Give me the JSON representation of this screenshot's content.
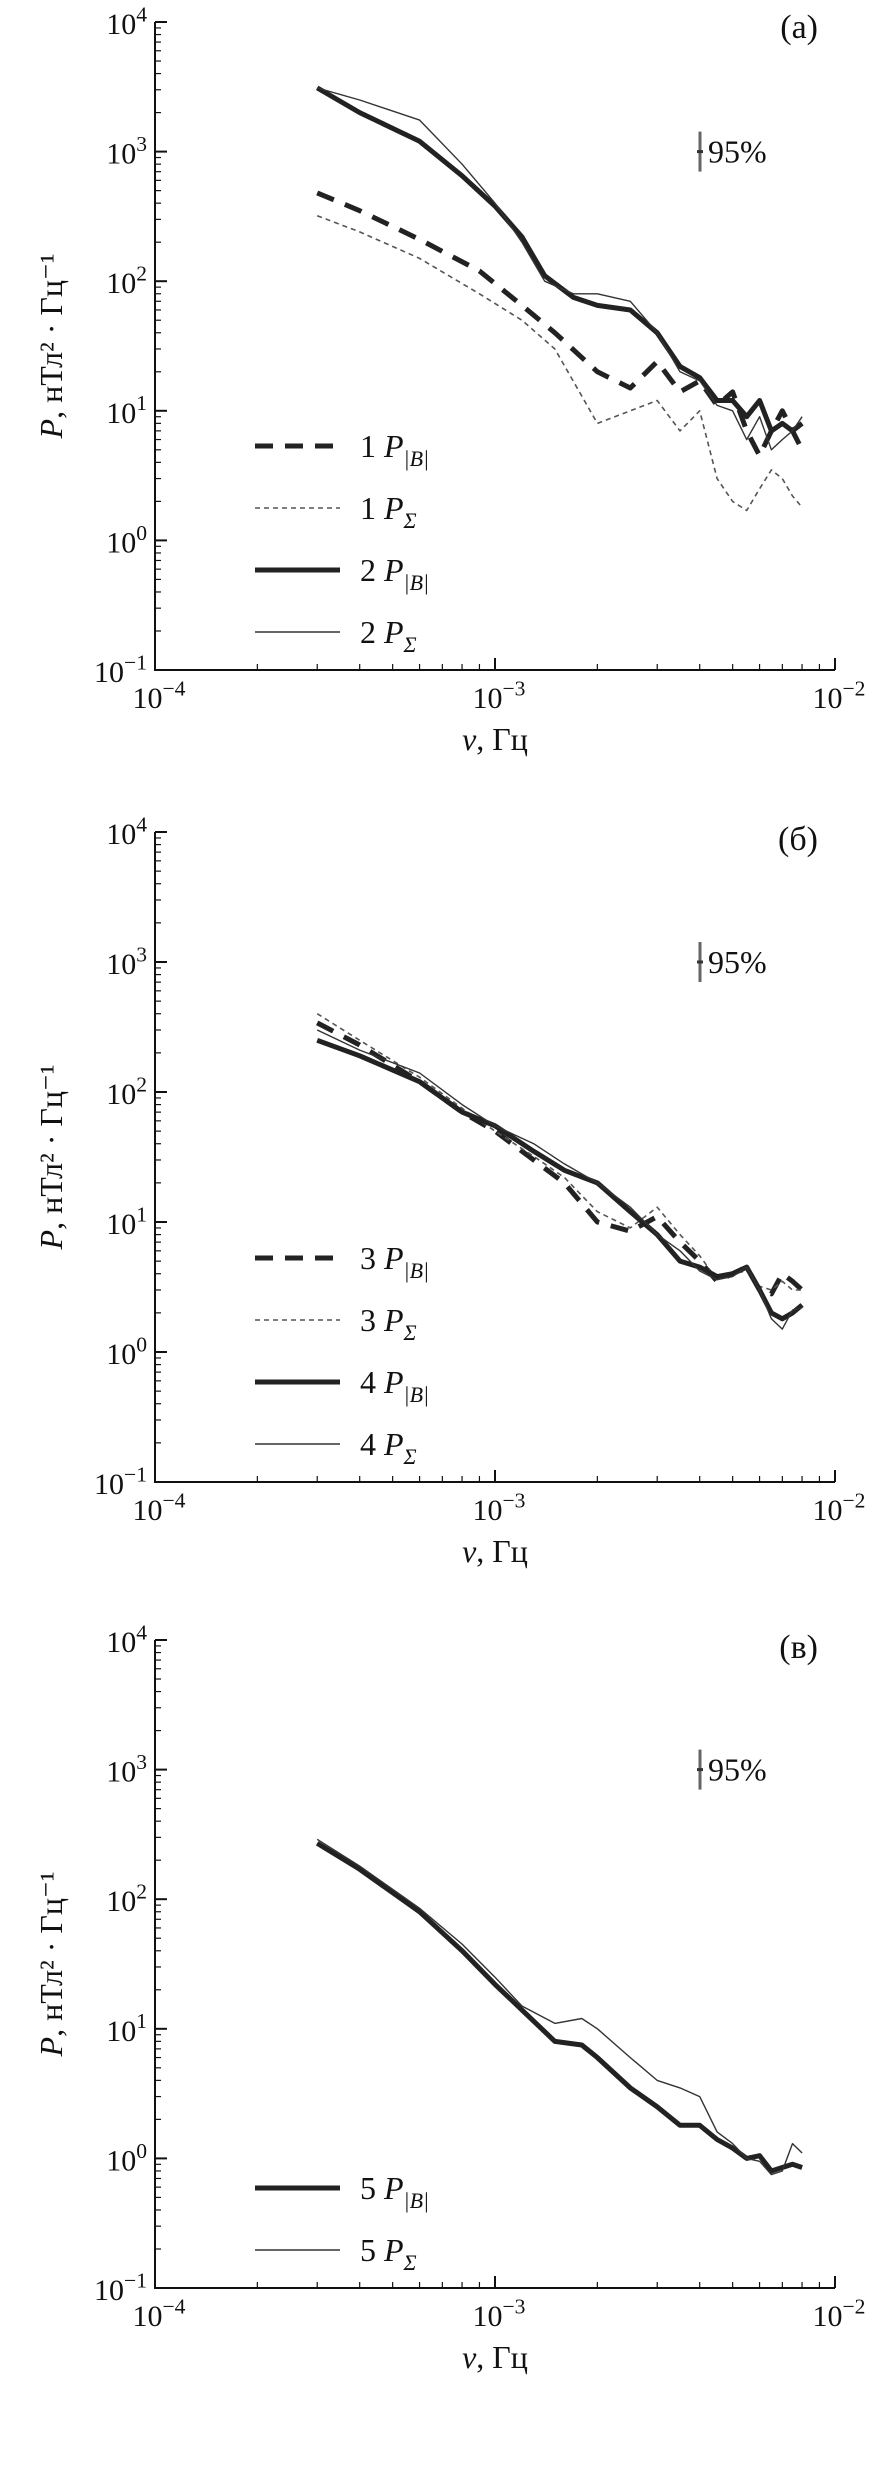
{
  "chart_data": [
    {
      "type": "line",
      "panel_label": "(а)",
      "xlabel": "ν, Гц",
      "ylabel": "P, нТл² · Гц⁻¹",
      "x_scale": "log",
      "y_scale": "log",
      "xlim": [
        0.0001,
        0.01
      ],
      "ylim": [
        0.1,
        10000
      ],
      "x_ticks": [
        "10−4",
        "10−3",
        "10−2"
      ],
      "y_ticks": [
        "10−1",
        "100",
        "101",
        "102",
        "103",
        "104"
      ],
      "confidence_label": "95%",
      "confidence_at": 1000,
      "series": [
        {
          "name": "1 P|B|",
          "style": "thick-dashed",
          "x": [
            0.0003,
            0.0004,
            0.0006,
            0.0009,
            0.0012,
            0.0015,
            0.002,
            0.0025,
            0.003,
            0.0035,
            0.004,
            0.0045,
            0.005,
            0.0055,
            0.006,
            0.0065,
            0.007,
            0.0075,
            0.008
          ],
          "y": [
            480,
            350,
            210,
            120,
            65,
            40,
            20,
            15,
            24,
            14,
            17,
            11,
            14,
            7,
            4.5,
            7,
            10,
            7,
            5
          ]
        },
        {
          "name": "1 PΣ",
          "style": "thin-dotted",
          "x": [
            0.0003,
            0.0004,
            0.0006,
            0.0009,
            0.0012,
            0.0015,
            0.002,
            0.0025,
            0.003,
            0.0035,
            0.004,
            0.0045,
            0.005,
            0.0055,
            0.006,
            0.0065,
            0.007,
            0.0075,
            0.008
          ],
          "y": [
            320,
            240,
            150,
            80,
            50,
            30,
            8,
            10,
            12,
            7,
            10,
            3,
            2,
            1.7,
            2.5,
            3.5,
            3,
            2.2,
            1.8
          ]
        },
        {
          "name": "2 P|B|",
          "style": "thick-solid",
          "x": [
            0.0003,
            0.0004,
            0.0006,
            0.0008,
            0.001,
            0.0012,
            0.0014,
            0.0017,
            0.002,
            0.0025,
            0.003,
            0.0035,
            0.004,
            0.0045,
            0.005,
            0.0055,
            0.006,
            0.0065,
            0.007,
            0.0075,
            0.008
          ],
          "y": [
            3100,
            2000,
            1200,
            650,
            380,
            220,
            110,
            75,
            65,
            60,
            40,
            22,
            18,
            12,
            12,
            9,
            12,
            7,
            8,
            7,
            8
          ]
        },
        {
          "name": "2 PΣ",
          "style": "thin-solid",
          "x": [
            0.0003,
            0.0004,
            0.0006,
            0.0008,
            0.001,
            0.0012,
            0.0014,
            0.0017,
            0.002,
            0.0025,
            0.003,
            0.0035,
            0.004,
            0.0045,
            0.005,
            0.0055,
            0.006,
            0.0065,
            0.007,
            0.0075,
            0.008
          ],
          "y": [
            3100,
            2500,
            1750,
            800,
            400,
            200,
            100,
            80,
            80,
            70,
            40,
            20,
            17,
            11,
            10,
            6,
            9,
            5,
            6,
            7,
            9
          ]
        }
      ]
    },
    {
      "type": "line",
      "panel_label": "(б)",
      "xlabel": "ν, Гц",
      "ylabel": "P, нТл² · Гц⁻¹",
      "x_scale": "log",
      "y_scale": "log",
      "xlim": [
        0.0001,
        0.01
      ],
      "ylim": [
        0.1,
        10000
      ],
      "x_ticks": [
        "10−4",
        "10−3",
        "10−2"
      ],
      "y_ticks": [
        "10−1",
        "100",
        "101",
        "102",
        "103",
        "104"
      ],
      "confidence_label": "95%",
      "confidence_at": 1000,
      "series": [
        {
          "name": "3 P|B|",
          "style": "thick-dashed",
          "x": [
            0.0003,
            0.0004,
            0.0006,
            0.0008,
            0.001,
            0.0013,
            0.0016,
            0.002,
            0.0025,
            0.003,
            0.0035,
            0.004,
            0.0045,
            0.005,
            0.0055,
            0.006,
            0.0065,
            0.007,
            0.0075,
            0.008
          ],
          "y": [
            340,
            230,
            120,
            70,
            50,
            30,
            20,
            10,
            8.5,
            11,
            7,
            5,
            3.5,
            4,
            4.5,
            3,
            2.8,
            4,
            3.5,
            3
          ]
        },
        {
          "name": "3 PΣ",
          "style": "thin-dotted",
          "x": [
            0.0003,
            0.0004,
            0.0006,
            0.0008,
            0.001,
            0.0013,
            0.0016,
            0.002,
            0.0025,
            0.003,
            0.0035,
            0.004,
            0.0045,
            0.005,
            0.0055,
            0.006,
            0.0065,
            0.007,
            0.0075,
            0.008
          ],
          "y": [
            400,
            250,
            130,
            75,
            50,
            32,
            22,
            12,
            9,
            13,
            8,
            5.5,
            3.6,
            4,
            4.2,
            3.2,
            3,
            3.5,
            3,
            3
          ]
        },
        {
          "name": "4 P|B|",
          "style": "thick-solid",
          "x": [
            0.0003,
            0.0004,
            0.0006,
            0.0008,
            0.001,
            0.0013,
            0.0016,
            0.002,
            0.0025,
            0.003,
            0.0035,
            0.004,
            0.0045,
            0.005,
            0.0055,
            0.006,
            0.0065,
            0.007,
            0.0075,
            0.008
          ],
          "y": [
            250,
            190,
            120,
            70,
            55,
            35,
            25,
            20,
            12,
            8,
            5,
            4.5,
            3.8,
            4,
            4.5,
            3,
            2,
            1.8,
            2,
            2.3
          ]
        },
        {
          "name": "4 PΣ",
          "style": "thin-solid",
          "x": [
            0.0003,
            0.0004,
            0.0006,
            0.0008,
            0.001,
            0.0013,
            0.0016,
            0.002,
            0.0025,
            0.003,
            0.0035,
            0.004,
            0.0045,
            0.005,
            0.0055,
            0.006,
            0.0065,
            0.007,
            0.0075,
            0.008
          ],
          "y": [
            300,
            210,
            140,
            80,
            55,
            40,
            28,
            20,
            13,
            8,
            6,
            4.2,
            3.6,
            3.8,
            4.5,
            3,
            1.8,
            1.5,
            2.1,
            2.2
          ]
        }
      ]
    },
    {
      "type": "line",
      "panel_label": "(в)",
      "xlabel": "ν, Гц",
      "ylabel": "P, нТл² · Гц⁻¹",
      "x_scale": "log",
      "y_scale": "log",
      "xlim": [
        0.0001,
        0.01
      ],
      "ylim": [
        0.1,
        10000
      ],
      "x_ticks": [
        "10−4",
        "10−3",
        "10−2"
      ],
      "y_ticks": [
        "10−1",
        "100",
        "101",
        "102",
        "103",
        "104"
      ],
      "confidence_label": "95%",
      "confidence_at": 1000,
      "series": [
        {
          "name": "5 P|B|",
          "style": "thick-solid",
          "x": [
            0.0003,
            0.0004,
            0.0006,
            0.0008,
            0.001,
            0.0012,
            0.0015,
            0.0018,
            0.002,
            0.0025,
            0.003,
            0.0035,
            0.004,
            0.0045,
            0.005,
            0.0055,
            0.006,
            0.0065,
            0.007,
            0.0075,
            0.008
          ],
          "y": [
            270,
            170,
            80,
            40,
            22,
            14,
            8,
            7.5,
            6,
            3.5,
            2.5,
            1.8,
            1.8,
            1.4,
            1.2,
            1.0,
            1.05,
            0.8,
            0.85,
            0.9,
            0.85
          ]
        },
        {
          "name": "5 PΣ",
          "style": "thin-solid",
          "x": [
            0.0003,
            0.0004,
            0.0006,
            0.0008,
            0.001,
            0.0012,
            0.0015,
            0.0018,
            0.002,
            0.0025,
            0.003,
            0.0035,
            0.004,
            0.0045,
            0.005,
            0.0055,
            0.006,
            0.0065,
            0.007,
            0.0075,
            0.008
          ],
          "y": [
            290,
            180,
            85,
            45,
            25,
            15,
            11,
            12,
            10,
            6,
            4,
            3.5,
            3,
            1.6,
            1.3,
            1.0,
            0.95,
            0.75,
            0.8,
            1.3,
            1.1
          ]
        }
      ]
    }
  ]
}
